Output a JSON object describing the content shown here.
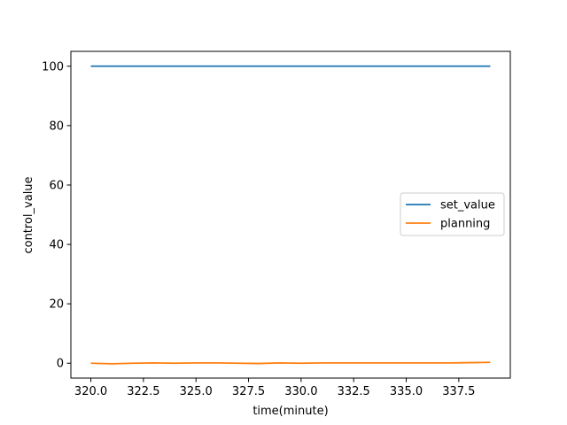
{
  "chart_data": {
    "type": "line",
    "title": "",
    "xlabel": "time(minute)",
    "ylabel": "control_value",
    "xlim": [
      319.05,
      339.95
    ],
    "ylim": [
      -5,
      105
    ],
    "xticks": [
      320.0,
      322.5,
      325.0,
      327.5,
      330.0,
      332.5,
      335.0,
      337.5
    ],
    "xtick_labels": [
      "320.0",
      "322.5",
      "325.0",
      "327.5",
      "330.0",
      "332.5",
      "335.0",
      "337.5"
    ],
    "yticks": [
      0,
      20,
      40,
      60,
      80,
      100
    ],
    "ytick_labels": [
      "0",
      "20",
      "40",
      "60",
      "80",
      "100"
    ],
    "grid": false,
    "legend_position": "center-right",
    "series": [
      {
        "name": "set_value",
        "color": "#1f77b4",
        "x": [
          320,
          321,
          322,
          323,
          324,
          325,
          326,
          327,
          328,
          329,
          330,
          331,
          332,
          333,
          334,
          335,
          336,
          337,
          338,
          339
        ],
        "y": [
          100,
          100,
          100,
          100,
          100,
          100,
          100,
          100,
          100,
          100,
          100,
          100,
          100,
          100,
          100,
          100,
          100,
          100,
          100,
          100
        ]
      },
      {
        "name": "planning",
        "color": "#ff7f0e",
        "x": [
          320,
          321,
          322,
          323,
          324,
          325,
          326,
          327,
          328,
          329,
          330,
          331,
          332,
          333,
          334,
          335,
          336,
          337,
          338,
          339
        ],
        "y": [
          0.0,
          -0.2,
          0.0,
          0.1,
          0.0,
          0.1,
          0.1,
          0.0,
          -0.1,
          0.1,
          0.0,
          0.1,
          0.1,
          0.1,
          0.1,
          0.1,
          0.1,
          0.1,
          0.2,
          0.3
        ]
      }
    ]
  }
}
